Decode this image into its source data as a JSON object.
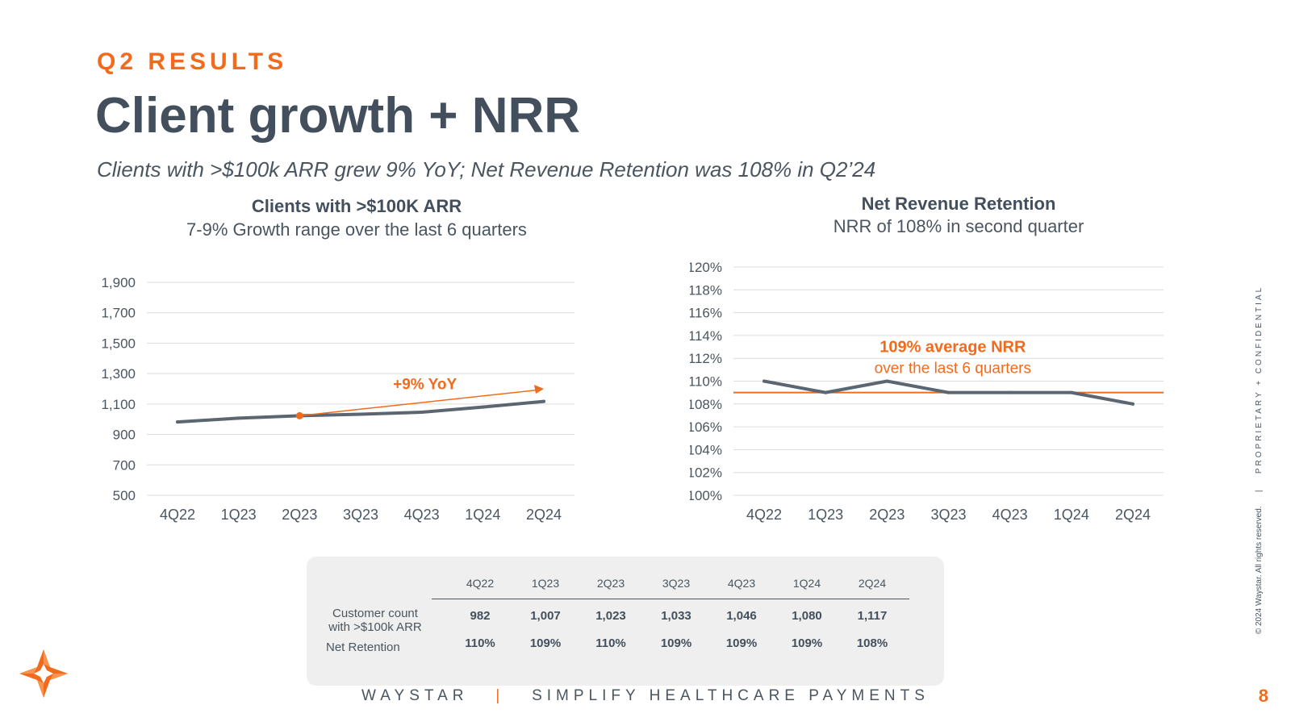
{
  "header": {
    "section_label": "Q2 RESULTS",
    "title": "Client growth + NRR",
    "subtitle": "Clients with >$100k ARR grew 9% YoY; Net Revenue Retention was 108% in Q2’24"
  },
  "left_chart_header": {
    "title": "Clients with >$100K ARR",
    "subtitle": "7-9% Growth range over the last 6 quarters"
  },
  "right_chart_header": {
    "title": "Net Revenue Retention",
    "subtitle": "NRR of 108% in second quarter"
  },
  "chart_data": [
    {
      "type": "line",
      "title": "Clients with >$100K ARR",
      "subtitle": "7-9% Growth range over the last 6 quarters",
      "categories": [
        "4Q22",
        "1Q23",
        "2Q23",
        "3Q23",
        "4Q23",
        "1Q24",
        "2Q24"
      ],
      "series": [
        {
          "name": "Customer count with >$100k ARR",
          "values": [
            982,
            1007,
            1023,
            1033,
            1046,
            1080,
            1117
          ]
        }
      ],
      "ylim": [
        500,
        1900
      ],
      "yticks": [
        "500",
        "700",
        "900",
        "1,100",
        "1,300",
        "1,500",
        "1,700",
        "1,900"
      ],
      "ytick_values": [
        500,
        700,
        900,
        1100,
        1300,
        1500,
        1700,
        1900
      ],
      "annotation": {
        "text": "+9% YoY",
        "from_category": "2Q23",
        "from_value": 1023,
        "to_category": "2Q24",
        "to_value": 1200
      },
      "grid": true,
      "colors": {
        "line": "#5b6670",
        "annotation": "#f26b1d",
        "grid": "#dcdcdc"
      }
    },
    {
      "type": "line",
      "title": "Net Revenue Retention",
      "subtitle": "NRR of 108% in second quarter",
      "categories": [
        "4Q22",
        "1Q23",
        "2Q23",
        "3Q23",
        "4Q23",
        "1Q24",
        "2Q24"
      ],
      "series": [
        {
          "name": "Net Retention",
          "values": [
            110,
            109,
            110,
            109,
            109,
            109,
            108
          ]
        }
      ],
      "ylim": [
        100,
        120
      ],
      "yticks": [
        "100%",
        "102%",
        "104%",
        "106%",
        "108%",
        "110%",
        "112%",
        "114%",
        "116%",
        "118%",
        "120%"
      ],
      "ytick_values": [
        100,
        102,
        104,
        106,
        108,
        110,
        112,
        114,
        116,
        118,
        120
      ],
      "reference_line": {
        "value": 109,
        "label": "109% average NRR",
        "sublabel": "over the last 6 quarters"
      },
      "grid": true,
      "colors": {
        "line": "#5b6670",
        "reference": "#f26b1d",
        "grid": "#dcdcdc"
      }
    }
  ],
  "table": {
    "headers": [
      "4Q22",
      "1Q23",
      "2Q23",
      "3Q23",
      "4Q23",
      "1Q24",
      "2Q24"
    ],
    "rows": [
      {
        "label_line1": "Customer count",
        "label_line2": "with >$100k ARR",
        "values": [
          "982",
          "1,007",
          "1,023",
          "1,033",
          "1,046",
          "1,080",
          "1,117"
        ]
      },
      {
        "label_line1": "Net Retention",
        "values": [
          "110%",
          "109%",
          "110%",
          "109%",
          "109%",
          "109%",
          "108%"
        ]
      }
    ]
  },
  "footer": {
    "brand": "WAYSTAR",
    "separator": "|",
    "tagline": "SIMPLIFY HEALTHCARE PAYMENTS",
    "page_number": "8"
  },
  "side_note": {
    "copyright": "© 2024 Waystar. All rights reserved.",
    "separator": "|",
    "label": "PROPRIETARY + CONFIDENTIAL"
  },
  "logo": {
    "icon": "waystar-star-logo-icon",
    "color": "#f26b1d"
  }
}
